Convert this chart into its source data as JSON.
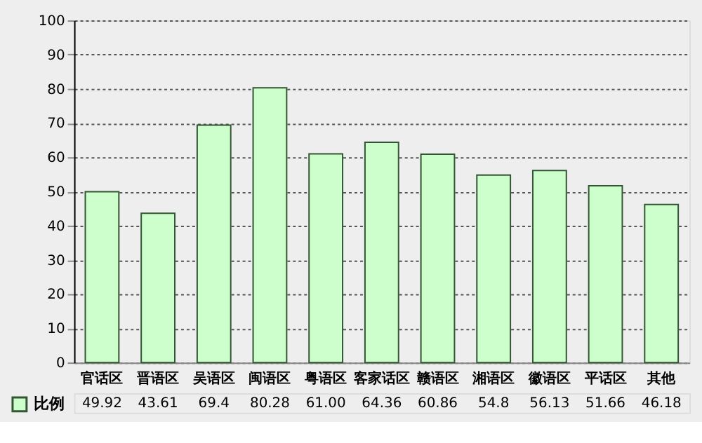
{
  "chart_data": {
    "type": "bar",
    "categories": [
      "官话区",
      "晋语区",
      "吴语区",
      "闽语区",
      "粤语区",
      "客家话区",
      "赣语区",
      "湘语区",
      "徽语区",
      "平话区",
      "其他"
    ],
    "series": [
      {
        "name": "比例",
        "color": "#ccffcc",
        "values": [
          49.92,
          43.61,
          69.4,
          80.28,
          61.0,
          64.36,
          60.86,
          54.8,
          56.13,
          51.66,
          46.18
        ],
        "value_labels": [
          "49.92",
          "43.61",
          "69.4",
          "80.28",
          "61.00",
          "64.36",
          "60.86",
          "54.8",
          "56.13",
          "51.66",
          "46.18"
        ]
      }
    ],
    "ylim": [
      0,
      100
    ],
    "yticks": [
      0,
      10,
      20,
      30,
      40,
      50,
      60,
      70,
      80,
      90,
      100
    ],
    "grid": "y",
    "legend": "bottom left"
  }
}
